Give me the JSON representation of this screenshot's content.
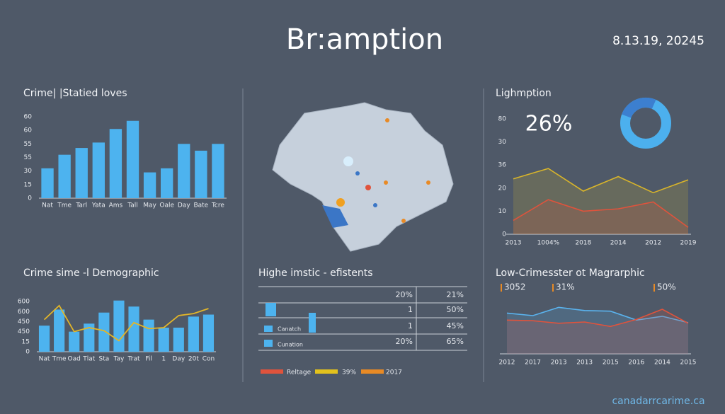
{
  "header": {
    "title": "Br:amption",
    "date": "8.13.19, 20245"
  },
  "footer": "canadarrcarime.ca",
  "chart_data": [
    {
      "type": "bar",
      "title": "Crime| |Statied loves",
      "categories": [
        "Nat",
        "Tme",
        "Tarl",
        "Yata",
        "Ams",
        "Tall",
        "May",
        "Oale",
        "Day",
        "Bate",
        "Tcre"
      ],
      "values": [
        22,
        32,
        37,
        41,
        51,
        57,
        19,
        22,
        40,
        35,
        40
      ],
      "color": "#4db3ef",
      "ylim": [
        0,
        60
      ],
      "yticks": [
        0,
        {
          "value": 10,
          "label": "15"
        },
        {
          "value": 20,
          "label": "30"
        },
        {
          "value": 30,
          "label": "55"
        },
        {
          "value": 40,
          "label": "55"
        },
        {
          "value": 50,
          "label": "60"
        },
        60
      ]
    },
    {
      "type": "bar",
      "title": "Crime sime -l Demographic",
      "categories": [
        "Nat",
        "Tme",
        "Oad",
        "Tlat",
        "Sta",
        "Tay",
        "Trat",
        "Fil",
        "1",
        "Day",
        "20t",
        "Con"
      ],
      "values": [
        26,
        42,
        20,
        28,
        39,
        51,
        45,
        32,
        24,
        24,
        35,
        37
      ],
      "color": "#4db3ef",
      "line_values": [
        32,
        46,
        20,
        24,
        21,
        11,
        29,
        23,
        24,
        36,
        38,
        43
      ],
      "line_color": "#e3b628",
      "ylim": [
        0,
        55
      ],
      "yticks": [
        0,
        {
          "value": 10,
          "label": "15"
        },
        {
          "value": 20,
          "label": "450"
        },
        {
          "value": 30,
          "label": "450"
        },
        {
          "value": 40,
          "label": "600"
        },
        {
          "value": 50,
          "label": "600"
        }
      ]
    },
    {
      "type": "line",
      "title": "Lighmption",
      "categories": [
        "2013",
        "1004%",
        "2018",
        "2014",
        "2012",
        "2019"
      ],
      "series": [
        {
          "color": "#d9b52a",
          "values": [
            24,
            28.5,
            18.7,
            25,
            18,
            23.6
          ]
        },
        {
          "color": "#e0533c",
          "values": [
            6,
            15,
            10,
            11,
            14,
            3
          ]
        }
      ],
      "ylim": [
        0,
        50
      ],
      "yticks": [
        0,
        10,
        20,
        {
          "value": 30,
          "label": "36"
        },
        {
          "value": 40,
          "label": "30"
        },
        {
          "value": 50,
          "label": "80"
        }
      ],
      "donut": {
        "value": 26,
        "value_label": "26%",
        "color": "#3c7fcf",
        "rest_color": "#4cb0ee"
      }
    },
    {
      "type": "line",
      "title": "Low-Crimesster ot Magrarphic",
      "categories": [
        "2012",
        "2017",
        "2013",
        "2013",
        "2015",
        "2016",
        "2014",
        "2015"
      ],
      "series": [
        {
          "color": "#5ab3ee",
          "values": [
            64,
            60,
            73,
            68,
            67,
            53,
            59,
            49
          ]
        },
        {
          "color": "#e0533c",
          "values": [
            53,
            52,
            48,
            50,
            43,
            54,
            70,
            48
          ]
        }
      ],
      "ylim": [
        0,
        100
      ],
      "annotations": [
        "3052",
        "31%",
        "50%"
      ]
    }
  ],
  "table": {
    "title": "Highe imstic - efistents",
    "rows": [
      [
        "20%",
        "21%"
      ],
      [
        "1",
        "50%"
      ],
      [
        "1",
        "45%"
      ],
      [
        "20%",
        "65%"
      ]
    ],
    "labels": [
      "Canatch",
      "Cunation"
    ],
    "legend": [
      {
        "label": "Reltage",
        "color": "#e0533c"
      },
      {
        "label": "39%",
        "color": "#e3c21c"
      },
      {
        "label": "2017",
        "color": "#e88a25"
      }
    ]
  }
}
